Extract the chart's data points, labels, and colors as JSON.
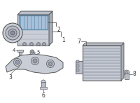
{
  "bg_color": "#ffffff",
  "line_color": "#555555",
  "label_color": "#333333",
  "part_gray": "#c8cdd6",
  "part_dark": "#a8adb8",
  "part_mid": "#b8bdc8",
  "highlight_blue": "#a8c0d8",
  "highlight_edge": "#6090b0",
  "rib_light": "#d0d5de",
  "rib_dark": "#b0b5c0",
  "figsize": [
    2.0,
    1.47
  ],
  "dpi": 100
}
